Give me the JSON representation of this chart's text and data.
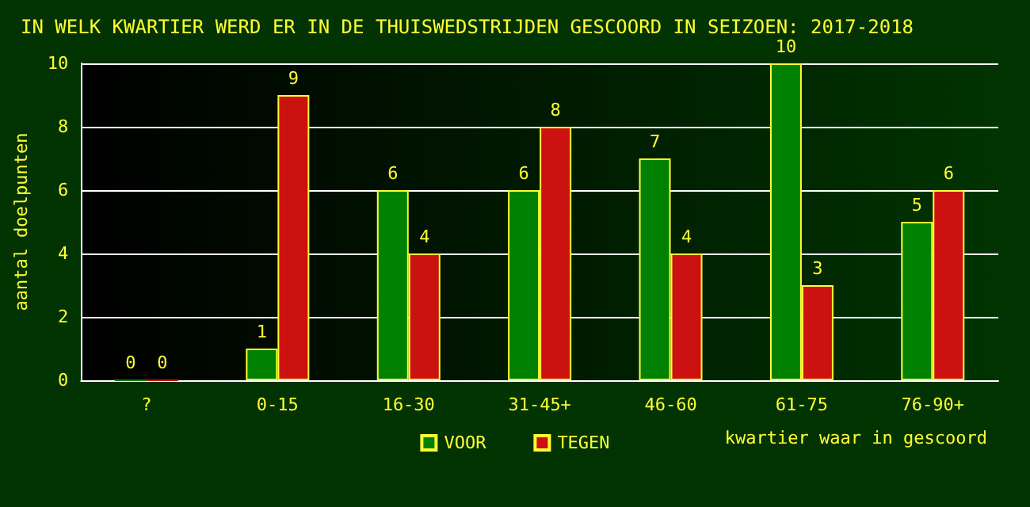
{
  "chart_data": {
    "type": "bar",
    "title": "IN WELK KWARTIER WERD ER IN DE THUISWEDSTRIJDEN GESCOORD IN SEIZOEN: 2017-2018",
    "xlabel": "kwartier waar in gescoord",
    "ylabel": "aantal doelpunten",
    "categories": [
      "?",
      "0-15",
      "16-30",
      "31-45+",
      "46-60",
      "61-75",
      "76-90+"
    ],
    "series": [
      {
        "name": "VOOR",
        "color": "#008000",
        "values": [
          0,
          1,
          6,
          6,
          7,
          10,
          5
        ]
      },
      {
        "name": "TEGEN",
        "color": "#cc1111",
        "values": [
          0,
          9,
          4,
          8,
          4,
          3,
          6
        ]
      }
    ],
    "ylim": [
      0,
      10
    ],
    "yticks": [
      0,
      2,
      4,
      6,
      8,
      10
    ],
    "grid": "y",
    "legend": "bottom",
    "data_labels": true
  }
}
